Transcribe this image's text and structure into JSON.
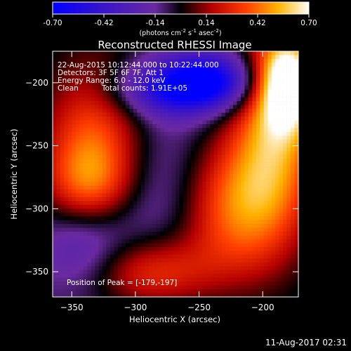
{
  "chart_data": {
    "type": "heatmap",
    "title": "Reconstructed RHESSI Image",
    "xlabel": "Heliocentric X (arcsec)",
    "ylabel": "Heliocentric Y (arcsec)",
    "xlim": [
      -365,
      -172
    ],
    "ylim": [
      -370,
      -175
    ],
    "xticks": [
      -350,
      -300,
      -250,
      -200
    ],
    "yticks": [
      -200,
      -250,
      -300,
      -350
    ],
    "colorbar": {
      "range": [
        -0.7,
        0.7
      ],
      "ticks": [
        "-0.70",
        "-0.42",
        "-0.14",
        "0.14",
        "0.42",
        "0.70"
      ],
      "label_main": "(photons cm",
      "label_exp1": "-2",
      "label_mid1": " s",
      "label_exp2": "-1",
      "label_mid2": " asec",
      "label_exp3": "-2",
      "label_end": ")"
    },
    "annotations": {
      "time": "22-Aug-2015 10:12:44.000 to 10:22:44.000",
      "detectors": "Detectors: 3F 5F 6F 7F, Att 1",
      "energy": "Energy Range: 6.0 - 12.0 keV",
      "clean": "Clean",
      "counts": "Total counts: 1.91E+05",
      "peak": "Position of Peak = [-179,-197]"
    },
    "features": [
      {
        "x": -330,
        "y": -240,
        "sx": 30,
        "sy": 45,
        "value": 0.45
      },
      {
        "x": -335,
        "y": -280,
        "sx": 25,
        "sy": 25,
        "value": 0.35
      },
      {
        "x": -190,
        "y": -240,
        "sx": 25,
        "sy": 60,
        "value": 0.55
      },
      {
        "x": -180,
        "y": -200,
        "sx": 15,
        "sy": 25,
        "value": 0.7
      },
      {
        "x": -225,
        "y": -300,
        "sx": 30,
        "sy": 40,
        "value": 0.45
      },
      {
        "x": -290,
        "y": -350,
        "sx": 35,
        "sy": 20,
        "value": 0.4
      },
      {
        "x": -265,
        "y": -205,
        "sx": 35,
        "sy": 15,
        "value": -0.55
      },
      {
        "x": -240,
        "y": -195,
        "sx": 25,
        "sy": 15,
        "value": -0.4
      },
      {
        "x": -290,
        "y": -280,
        "sx": 35,
        "sy": 50,
        "value": -0.2
      },
      {
        "x": -340,
        "y": -330,
        "sx": 25,
        "sy": 25,
        "value": -0.25
      }
    ]
  },
  "footer": {
    "timestamp": "11-Aug-2017 02:31"
  }
}
